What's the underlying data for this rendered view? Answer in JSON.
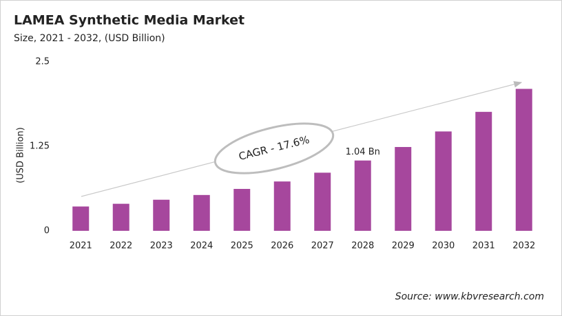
{
  "chart_data": {
    "type": "bar",
    "title": "LAMEA Synthetic Media Market",
    "subtitle": "Size, 2021 - 2032, (USD Billion)",
    "y_label": "(USD Billion)",
    "categories": [
      "2021",
      "2022",
      "2023",
      "2024",
      "2025",
      "2026",
      "2027",
      "2028",
      "2029",
      "2030",
      "2031",
      "2032"
    ],
    "values": [
      0.36,
      0.4,
      0.46,
      0.53,
      0.62,
      0.73,
      0.86,
      1.04,
      1.24,
      1.47,
      1.76,
      2.1
    ],
    "value_labels": [
      null,
      null,
      null,
      null,
      null,
      null,
      null,
      "1.04 Bn",
      null,
      null,
      null,
      null
    ],
    "color": "#a6479d",
    "ylim": [
      0,
      2.5
    ],
    "yticks": [
      0,
      1.25,
      2.5
    ],
    "grid": false,
    "annotation": "CAGR - 17.6%",
    "source": "Source: www.kbvresearch.com"
  }
}
